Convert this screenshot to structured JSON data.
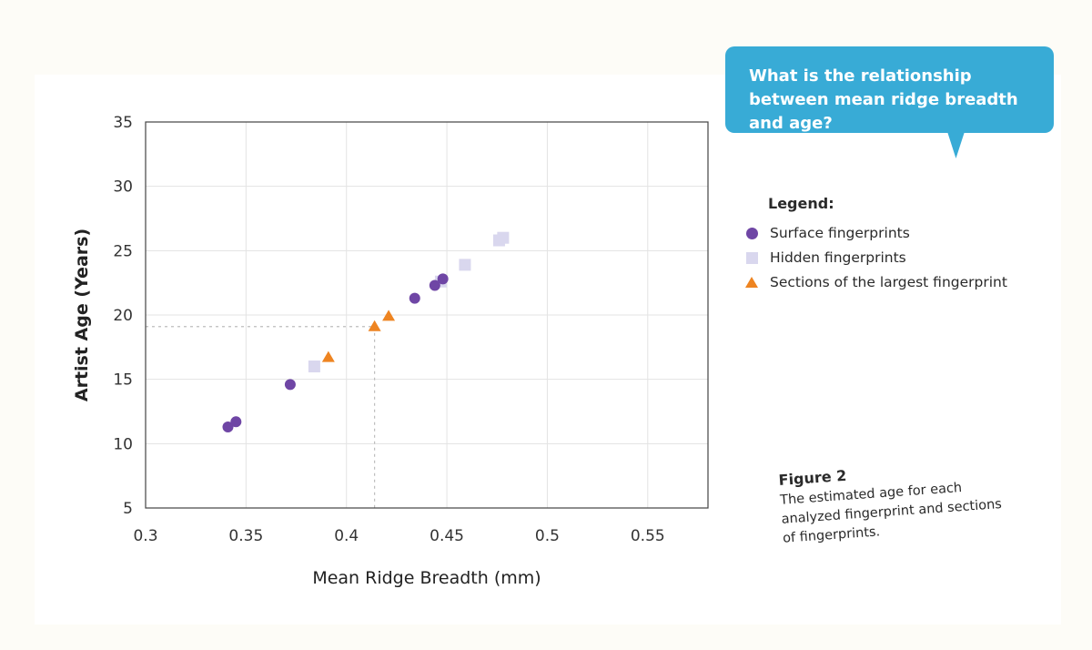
{
  "question": "What is the relationship between mean ridge breadth and age?",
  "legend": {
    "title": "Legend:",
    "items": [
      {
        "label": "Surface fingerprints",
        "marker": "circle",
        "color": "#6f46a5"
      },
      {
        "label": "Hidden fingerprints",
        "marker": "square",
        "color": "#d9d7ee"
      },
      {
        "label": "Sections of the largest fingerprint",
        "marker": "triangle",
        "color": "#ee8421"
      }
    ]
  },
  "caption": {
    "title": "Figure 2",
    "text": "The estimated age for each analyzed fingerprint and sections of fingerprints."
  },
  "chart_data": {
    "type": "scatter",
    "xlabel": "Mean Ridge Breadth (mm)",
    "ylabel": "Artist Age (Years)",
    "xlim": [
      0.3,
      0.58
    ],
    "ylim": [
      5,
      35
    ],
    "xticks": [
      0.3,
      0.35,
      0.4,
      0.45,
      0.5,
      0.55
    ],
    "xtick_labels": [
      "0.3",
      "0.35",
      "0.4",
      "0.45",
      "0.5",
      "0.55"
    ],
    "yticks": [
      5,
      10,
      15,
      20,
      25,
      30,
      35
    ],
    "ytick_labels": [
      "5",
      "10",
      "15",
      "20",
      "25",
      "30",
      "35"
    ],
    "grid": true,
    "series": [
      {
        "name": "Surface fingerprints",
        "marker": "circle",
        "color": "#6f46a5",
        "points": [
          [
            0.341,
            11.3
          ],
          [
            0.345,
            11.7
          ],
          [
            0.372,
            14.6
          ],
          [
            0.434,
            21.3
          ],
          [
            0.444,
            22.3
          ],
          [
            0.448,
            22.8
          ]
        ]
      },
      {
        "name": "Hidden fingerprints",
        "marker": "square",
        "color": "#d9d7ee",
        "points": [
          [
            0.384,
            16.0
          ],
          [
            0.447,
            22.6
          ],
          [
            0.459,
            23.9
          ],
          [
            0.476,
            25.8
          ],
          [
            0.478,
            26.0
          ]
        ]
      },
      {
        "name": "Sections of the largest fingerprint",
        "marker": "triangle",
        "color": "#ee8421",
        "points": [
          [
            0.391,
            16.7
          ],
          [
            0.414,
            19.1
          ],
          [
            0.421,
            19.9
          ]
        ]
      }
    ],
    "reference_point": [
      0.414,
      19.1
    ]
  }
}
